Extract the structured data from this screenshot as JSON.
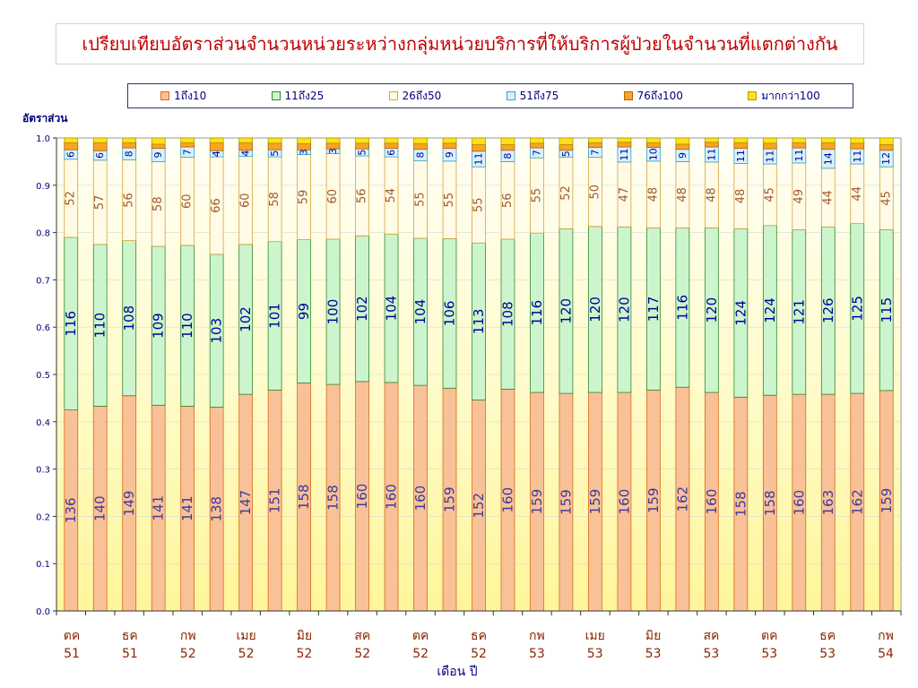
{
  "title": "เปรียบเทียบอัตราส่วนจำนวนหน่วยระหว่างกลุ่มหน่วยบริการที่ให้บริการผู้ป่วยในจำนวนที่แตกต่างกัน",
  "colors": {
    "s1": "#f9c197",
    "s2": "#cdf5cd",
    "s3": "#fffbe6",
    "s4": "#d8f2fb",
    "s5": "#f5a623",
    "s6": "#ffe11a",
    "border1": "#d9691a",
    "border2": "#2f8a2f",
    "border3": "#d9a23a",
    "border4": "#3aa0c8",
    "border5": "#b5610e",
    "border6": "#b59a00",
    "label1": "#3c3c99",
    "label2": "#000099",
    "label3": "#a05a2c",
    "title": "#c00000",
    "axis_text": "#8b2500"
  },
  "chart_data": {
    "type": "bar",
    "stacked": true,
    "ylabel": "อัตราส่วน",
    "xlabel": "เดือน ปี",
    "ylim": [
      0,
      1
    ],
    "yticks": [
      "0.0",
      "0.1",
      "0.2",
      "0.3",
      "0.4",
      "0.5",
      "0.6",
      "0.7",
      "0.8",
      "0.9",
      "1.0"
    ],
    "legend_position": "top",
    "x_tick_labels": [
      {
        "month": "ตค",
        "year": "51"
      },
      {
        "month": "ธค",
        "year": "51"
      },
      {
        "month": "กพ",
        "year": "52"
      },
      {
        "month": "เมย",
        "year": "52"
      },
      {
        "month": "มิย",
        "year": "52"
      },
      {
        "month": "สค",
        "year": "52"
      },
      {
        "month": "ตค",
        "year": "52"
      },
      {
        "month": "ธค",
        "year": "52"
      },
      {
        "month": "กพ",
        "year": "53"
      },
      {
        "month": "เมย",
        "year": "53"
      },
      {
        "month": "มิย",
        "year": "53"
      },
      {
        "month": "สค",
        "year": "53"
      },
      {
        "month": "ตค",
        "year": "53"
      },
      {
        "month": "ธค",
        "year": "53"
      },
      {
        "month": "กพ",
        "year": "54"
      }
    ],
    "series": [
      {
        "name": "1ถึง10",
        "values": [
          136,
          140,
          149,
          141,
          141,
          138,
          147,
          151,
          158,
          158,
          160,
          160,
          160,
          159,
          152,
          160,
          159,
          159,
          159,
          160,
          159,
          162,
          160,
          158,
          158,
          160,
          163,
          162,
          159
        ]
      },
      {
        "name": "11ถึง25",
        "values": [
          116,
          110,
          108,
          109,
          110,
          103,
          102,
          101,
          99,
          100,
          102,
          104,
          104,
          106,
          113,
          108,
          116,
          120,
          120,
          120,
          117,
          116,
          120,
          124,
          124,
          121,
          126,
          125,
          115
        ]
      },
      {
        "name": "26ถึง50",
        "values": [
          52,
          57,
          56,
          58,
          60,
          66,
          60,
          58,
          59,
          60,
          56,
          54,
          55,
          55,
          55,
          56,
          55,
          52,
          50,
          47,
          48,
          48,
          48,
          48,
          45,
          49,
          44,
          44,
          45
        ]
      },
      {
        "name": "51ถึง75",
        "values": [
          6,
          6,
          8,
          9,
          7,
          4,
          4,
          5,
          3,
          3,
          5,
          6,
          8,
          9,
          11,
          8,
          7,
          5,
          7,
          11,
          10,
          9,
          11,
          11,
          11,
          11,
          14,
          11,
          12
        ]
      },
      {
        "name": "76ถึง100",
        "values": [
          null,
          null,
          null,
          null,
          null,
          null,
          null,
          null,
          null,
          null,
          null,
          null,
          null,
          null,
          null,
          null,
          null,
          null,
          null,
          null,
          null,
          null,
          null,
          null,
          null,
          null,
          null,
          null,
          null
        ]
      },
      {
        "name": "มากกว่า100",
        "values": [
          null,
          null,
          null,
          null,
          null,
          null,
          null,
          null,
          null,
          null,
          null,
          null,
          null,
          null,
          null,
          null,
          null,
          null,
          null,
          null,
          null,
          null,
          null,
          null,
          null,
          null,
          null,
          null,
          null
        ]
      }
    ],
    "fractions": {
      "s1": [
        0.425,
        0.433,
        0.455,
        0.435,
        0.433,
        0.431,
        0.458,
        0.467,
        0.482,
        0.479,
        0.485,
        0.483,
        0.477,
        0.471,
        0.446,
        0.469,
        0.462,
        0.46,
        0.462,
        0.462,
        0.467,
        0.473,
        0.462,
        0.452,
        0.456,
        0.458,
        0.458,
        0.46,
        0.466
      ],
      "s2": [
        0.365,
        0.342,
        0.328,
        0.336,
        0.34,
        0.323,
        0.317,
        0.314,
        0.303,
        0.307,
        0.308,
        0.314,
        0.311,
        0.316,
        0.332,
        0.317,
        0.337,
        0.348,
        0.351,
        0.35,
        0.343,
        0.337,
        0.348,
        0.356,
        0.359,
        0.348,
        0.354,
        0.359,
        0.34
      ],
      "s3": [
        0.165,
        0.178,
        0.171,
        0.179,
        0.186,
        0.206,
        0.186,
        0.179,
        0.18,
        0.181,
        0.169,
        0.163,
        0.164,
        0.164,
        0.161,
        0.164,
        0.159,
        0.151,
        0.146,
        0.137,
        0.141,
        0.14,
        0.139,
        0.138,
        0.13,
        0.141,
        0.124,
        0.126,
        0.133
      ],
      "s4": [
        0.02,
        0.02,
        0.025,
        0.028,
        0.022,
        0.013,
        0.013,
        0.015,
        0.01,
        0.01,
        0.015,
        0.018,
        0.024,
        0.027,
        0.033,
        0.024,
        0.021,
        0.015,
        0.021,
        0.032,
        0.029,
        0.026,
        0.032,
        0.032,
        0.032,
        0.032,
        0.04,
        0.032,
        0.035
      ],
      "s5": [
        0.015,
        0.017,
        0.011,
        0.009,
        0.009,
        0.017,
        0.016,
        0.014,
        0.013,
        0.012,
        0.012,
        0.011,
        0.012,
        0.011,
        0.014,
        0.012,
        0.01,
        0.012,
        0.01,
        0.01,
        0.01,
        0.011,
        0.01,
        0.012,
        0.012,
        0.011,
        0.014,
        0.012,
        0.012
      ],
      "s6": [
        0.01,
        0.01,
        0.01,
        0.013,
        0.01,
        0.01,
        0.01,
        0.011,
        0.012,
        0.011,
        0.011,
        0.011,
        0.012,
        0.011,
        0.014,
        0.014,
        0.011,
        0.014,
        0.01,
        0.009,
        0.01,
        0.013,
        0.009,
        0.01,
        0.011,
        0.01,
        0.01,
        0.011,
        0.014
      ]
    }
  }
}
